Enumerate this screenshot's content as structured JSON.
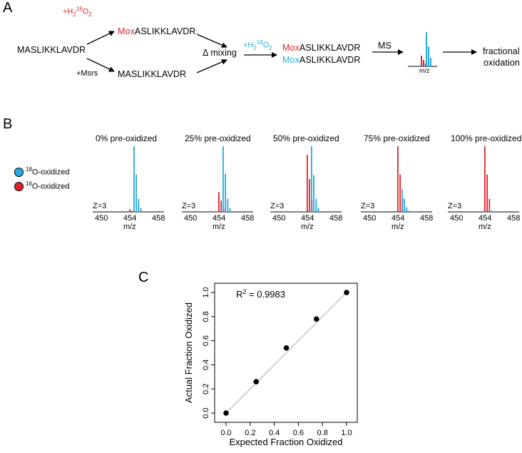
{
  "panelA": {
    "label": "A",
    "start_peptide": "MASLIKKLAVDR",
    "oxidant_top": {
      "prefix": "+H",
      "sub": "2",
      "sup": "16",
      "suffix": "O",
      "sub2": "2"
    },
    "top_product": {
      "mod": "Mox",
      "rest": "ASLIKKLAVDR"
    },
    "msrs_label": "+Msrs",
    "bottom_product": "MASLIKKLAVDR",
    "mixing_label": "Δ mixing",
    "oxidant_heavy": {
      "prefix": "+H",
      "sub": "2",
      "sup": "18",
      "suffix": "O",
      "sub2": "2"
    },
    "mixed_red": {
      "mod": "Mox",
      "rest": "ASLIKKLAVDR"
    },
    "mixed_blue": {
      "mod": "Mox",
      "rest": "ASLIKKLAVDR"
    },
    "ms_label": "MS",
    "mini_axis_label": "m/z",
    "result_line1": "fractional",
    "result_line2": "oxidation"
  },
  "panelB": {
    "label": "B",
    "legend": [
      {
        "sup": "18",
        "text": "O-oxidized",
        "color": "#28a9e0"
      },
      {
        "sup": "16",
        "text": "O-oxidized",
        "color": "#e0242b"
      }
    ],
    "charge_label": "Z=3",
    "ticks": [
      "450",
      "454",
      "458"
    ],
    "xlabel": "m/z",
    "spectra": [
      {
        "title": "0% pre-oxidized",
        "blue": [
          1.0,
          0.57,
          0.2,
          0.06
        ],
        "red": [
          0.04,
          0.02,
          0.01
        ]
      },
      {
        "title": "25% pre-oxidized",
        "blue": [
          1.0,
          0.58,
          0.2,
          0.06
        ],
        "red": [
          0.3,
          0.17,
          0.06
        ]
      },
      {
        "title": "50% pre-oxidized",
        "blue": [
          1.0,
          0.56,
          0.2,
          0.06
        ],
        "red": [
          0.87,
          0.5,
          0.18
        ]
      },
      {
        "title": "75% pre-oxidized",
        "blue": [
          0.35,
          0.2,
          0.07,
          0.02
        ],
        "red": [
          1.0,
          0.57,
          0.2
        ]
      },
      {
        "title": "100% pre-oxidized",
        "blue": [
          0.03,
          0.02,
          0.01,
          0.0
        ],
        "red": [
          1.0,
          0.57,
          0.2
        ]
      }
    ]
  },
  "chart_data": {
    "type": "scatter",
    "label": "C",
    "xlabel": "Expected Fraction Oxidized",
    "ylabel": "Actual Fraction Oxidized",
    "annotation": {
      "prefix": "R",
      "sup": "2",
      "suffix": " = 0.9983"
    },
    "xlim": [
      0,
      1
    ],
    "ylim": [
      0,
      1
    ],
    "xticks": [
      "0.0",
      "0.2",
      "0.4",
      "0.6",
      "0.8",
      "1.0"
    ],
    "yticks": [
      "0.0",
      "0.2",
      "0.4",
      "0.6",
      "0.8",
      "1.0"
    ],
    "x": [
      0.0,
      0.25,
      0.5,
      0.75,
      1.0
    ],
    "y": [
      0.0,
      0.26,
      0.54,
      0.78,
      1.0
    ],
    "fit_line": [
      [
        0,
        0
      ],
      [
        1,
        1
      ]
    ]
  }
}
